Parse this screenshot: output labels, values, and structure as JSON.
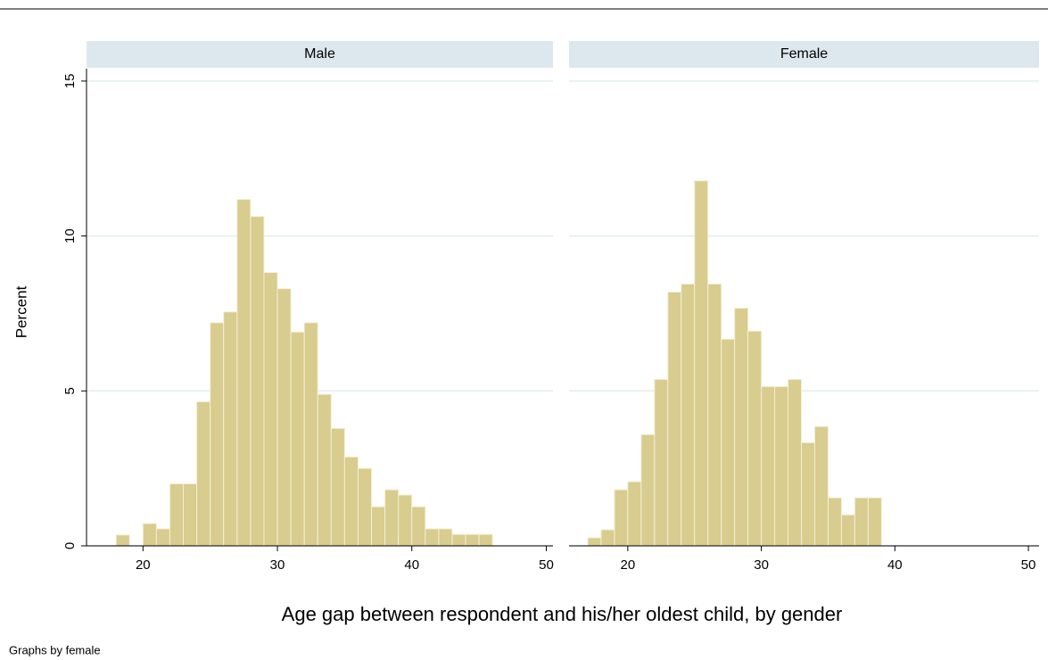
{
  "xlabel": "Age gap between respondent and his/her oldest child, by gender",
  "ylabel": "Percent",
  "note": "Graphs by female",
  "chart_data": [
    {
      "type": "histogram",
      "title": "Male",
      "bins": [
        18,
        19,
        20,
        21,
        22,
        23,
        24,
        25,
        26,
        27,
        28,
        29,
        30,
        31,
        32,
        33,
        34,
        35,
        36,
        37,
        38,
        39,
        40,
        41,
        42,
        43,
        44,
        45,
        46
      ],
      "values": [
        0.35,
        0,
        0.72,
        0.55,
        2.0,
        2.0,
        4.65,
        7.2,
        7.55,
        11.18,
        10.63,
        8.82,
        8.3,
        6.9,
        7.2,
        4.89,
        3.79,
        2.87,
        2.5,
        1.26,
        1.81,
        1.64,
        1.26,
        0.55,
        0.55,
        0.37,
        0.37,
        0.37
      ],
      "color": "#d8cc8e",
      "xlim": [
        15.8,
        50.5
      ],
      "ylim": [
        0,
        15.4
      ],
      "xticks": [
        20,
        30,
        40,
        50
      ],
      "yticks": [
        0,
        5,
        10,
        15
      ],
      "grid": true
    },
    {
      "type": "histogram",
      "title": "Female",
      "bins": [
        17,
        18,
        19,
        20,
        21,
        22,
        23,
        24,
        25,
        26,
        27,
        28,
        29,
        30,
        31,
        32,
        33,
        34,
        35,
        36,
        37,
        38,
        39
      ],
      "values": [
        0.26,
        0.52,
        1.81,
        2.07,
        3.59,
        5.37,
        8.19,
        8.45,
        11.78,
        8.45,
        6.67,
        7.67,
        6.93,
        5.14,
        5.14,
        5.37,
        3.33,
        3.85,
        1.55,
        1.0,
        1.55,
        1.55
      ],
      "color": "#d8cc8e",
      "xlim": [
        15.6,
        50.8
      ],
      "ylim": [
        0,
        15.4
      ],
      "xticks": [
        20,
        30,
        40,
        50
      ],
      "yticks": [
        0,
        5,
        10,
        15
      ],
      "grid": true
    }
  ]
}
